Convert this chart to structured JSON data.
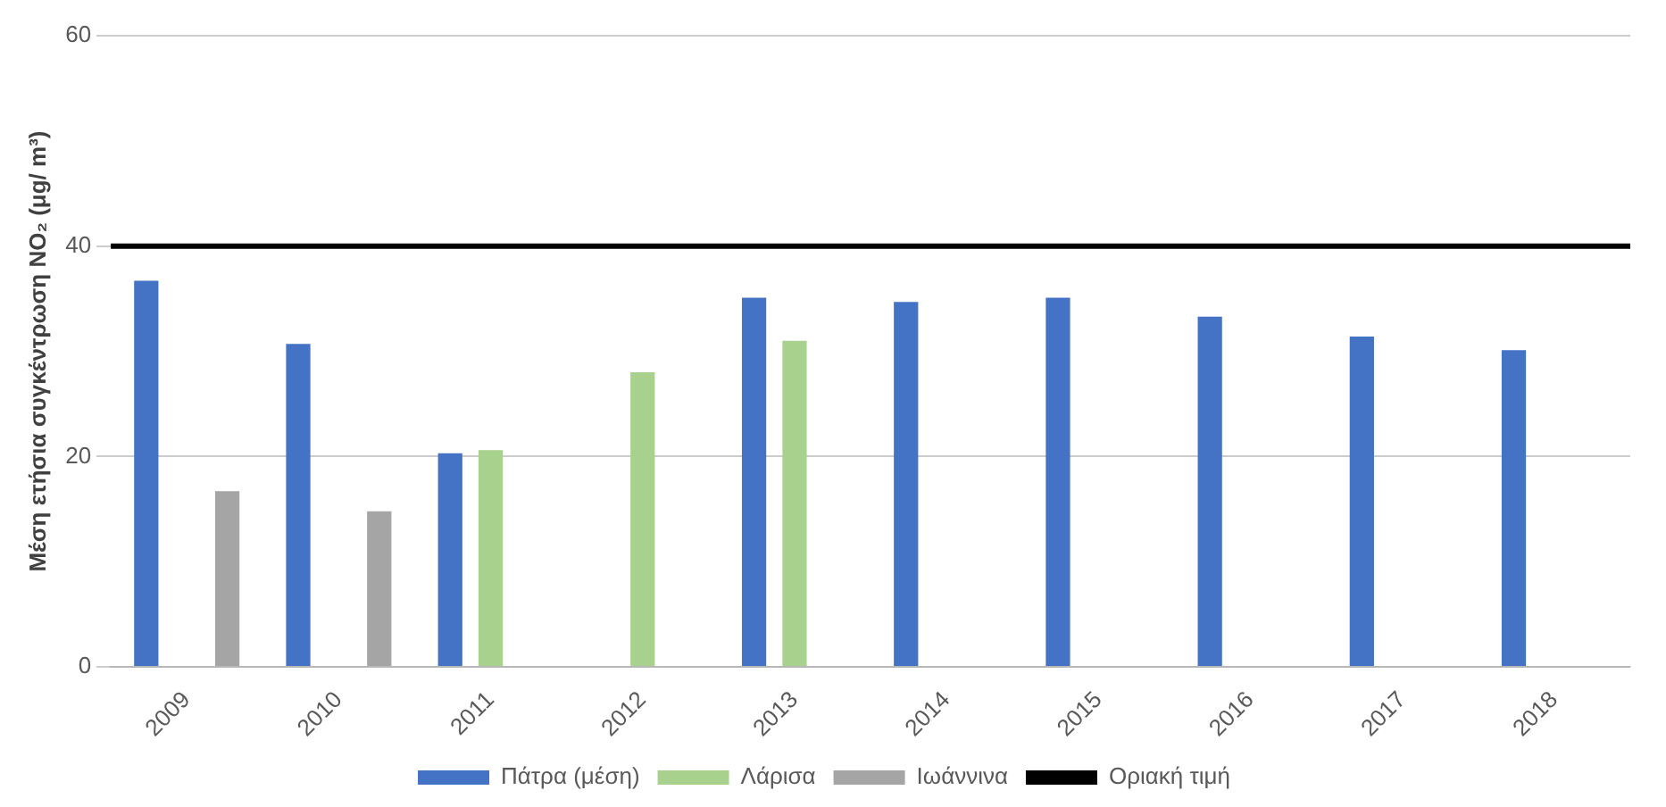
{
  "chart_data": {
    "type": "bar",
    "ylabel": "Μέση ετήσια συγκέντρωση NO₂ (μg/ m³)",
    "categories": [
      "2009",
      "2010",
      "2011",
      "2012",
      "2013",
      "2014",
      "2015",
      "2016",
      "2017",
      "2018"
    ],
    "series": [
      {
        "name": "Πάτρα (μέση)",
        "color": "#4472c4",
        "values": [
          36.7,
          30.7,
          20.3,
          null,
          35.1,
          34.7,
          35.1,
          33.3,
          31.4,
          30.1
        ]
      },
      {
        "name": "Λάρισα",
        "color": "#a9d18e",
        "values": [
          null,
          null,
          20.6,
          28.0,
          31.0,
          null,
          null,
          null,
          null,
          null
        ]
      },
      {
        "name": "Ιωάννινα",
        "color": "#a5a5a5",
        "values": [
          16.7,
          14.8,
          null,
          null,
          null,
          null,
          null,
          null,
          null,
          null
        ]
      }
    ],
    "ref_lines": [
      {
        "axis": "y",
        "value": 40,
        "label": "Οριακή τιμή",
        "color": "#000000"
      }
    ],
    "ylim": [
      0,
      60
    ],
    "yticks": [
      0,
      20,
      40,
      60
    ],
    "grid": "y",
    "legend": "bottom"
  }
}
